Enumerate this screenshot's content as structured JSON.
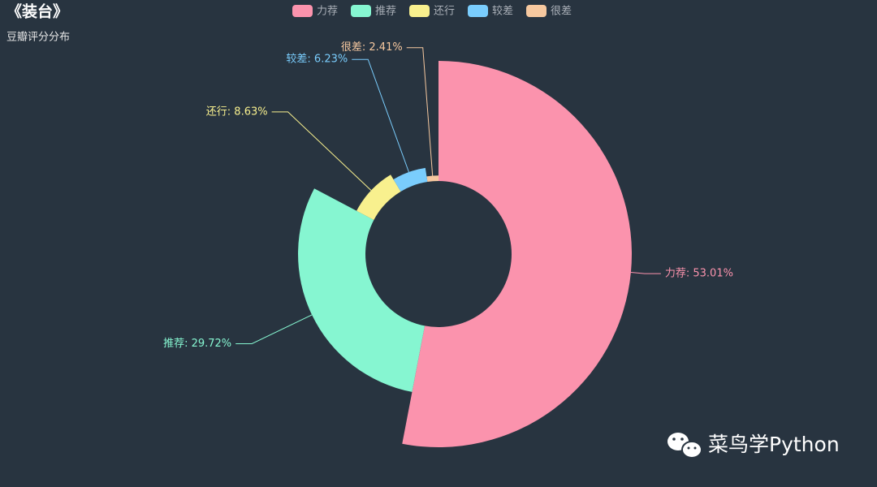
{
  "chart_data": {
    "type": "pie",
    "rose": true,
    "title": "《装台》",
    "subtitle": "豆瓣评分分布",
    "categories": [
      "力荐",
      "推荐",
      "还行",
      "较差",
      "很差"
    ],
    "values": [
      53.01,
      29.72,
      8.63,
      6.23,
      2.41
    ],
    "value_labels": [
      "力荐: 53.01%",
      "推荐: 29.72%",
      "还行: 8.63%",
      "较差: 6.23%",
      "很差: 2.41%"
    ],
    "colors": [
      "#fb93ad",
      "#86f6d1",
      "#f8f08e",
      "#7acdfd",
      "#f6c89f"
    ],
    "legend": "top",
    "watermark": "菜鸟学Python"
  }
}
